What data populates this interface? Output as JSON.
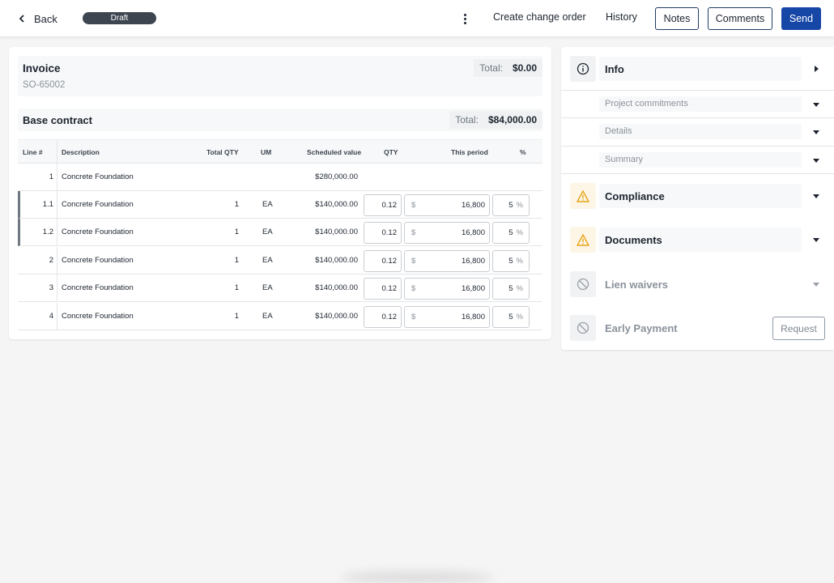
{
  "topbar": {
    "back_label": "Back",
    "status_badge": "Draft",
    "create_change_order": "Create change order",
    "history": "History",
    "notes": "Notes",
    "comments": "Comments",
    "send": "Send"
  },
  "invoice": {
    "title": "Invoice",
    "id": "SO-65002",
    "total_label": "Total:",
    "total_value": "$0.00"
  },
  "base_contract": {
    "title": "Base contract",
    "total_label": "Total:",
    "total_value": "$84,000.00"
  },
  "table": {
    "headers": {
      "line": "Line #",
      "description": "Description",
      "total_qty": "Total QTY",
      "um": "UM",
      "scheduled_value": "Scheduled value",
      "qty": "QTY",
      "this_period": "This period",
      "percent": "%"
    },
    "currency_prefix": "$",
    "percent_suffix": "%",
    "parent_row": {
      "line": "1",
      "description": "Concrete Foundation",
      "scheduled_value": "$280,000.00"
    },
    "rows": [
      {
        "line": "1.1",
        "description": "Concrete Foundation",
        "total_qty": "1",
        "um": "EA",
        "scheduled_value": "$140,000.00",
        "qty": "0.12",
        "this_period": "16,800",
        "percent": "5"
      },
      {
        "line": "1.2",
        "description": "Concrete Foundation",
        "total_qty": "1",
        "um": "EA",
        "scheduled_value": "$140,000.00",
        "qty": "0.12",
        "this_period": "16,800",
        "percent": "5"
      },
      {
        "line": "2",
        "description": "Concrete Foundation",
        "total_qty": "1",
        "um": "EA",
        "scheduled_value": "$140,000.00",
        "qty": "0.12",
        "this_period": "16,800",
        "percent": "5"
      },
      {
        "line": "3",
        "description": "Concrete Foundation",
        "total_qty": "1",
        "um": "EA",
        "scheduled_value": "$140,000.00",
        "qty": "0.12",
        "this_period": "16,800",
        "percent": "5"
      },
      {
        "line": "4",
        "description": "Concrete Foundation",
        "total_qty": "1",
        "um": "EA",
        "scheduled_value": "$140,000.00",
        "qty": "0.12",
        "this_period": "16,800",
        "percent": "5"
      }
    ]
  },
  "side": {
    "info": "Info",
    "project_commitments": "Project commitments",
    "details": "Details",
    "summary": "Summary",
    "compliance": "Compliance",
    "documents": "Documents",
    "lien_waivers": "Lien waivers",
    "early_payment": "Early Payment",
    "request": "Request"
  },
  "colors": {
    "primary": "#1747a6",
    "badge": "#3d4550",
    "warning": "#e8a317",
    "text": "#1d2530",
    "muted": "#8b929b"
  }
}
